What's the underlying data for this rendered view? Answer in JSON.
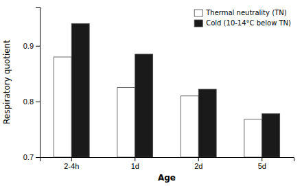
{
  "chart_data": {
    "type": "bar",
    "categories": [
      "2-4h",
      "1d",
      "2d",
      "5d"
    ],
    "series": [
      {
        "name": "Thermal neutrality (TN)",
        "color": "#ffffff",
        "values": [
          0.88,
          0.825,
          0.81,
          0.768
        ]
      },
      {
        "name": "Cold (10-14°C below TN)",
        "color": "#1a1a1a",
        "values": [
          0.94,
          0.885,
          0.822,
          0.778
        ]
      }
    ],
    "xlabel": "Age",
    "ylabel": "Respiratory quotient",
    "ylim": [
      0.7,
      0.97
    ],
    "yticks": [
      0.7,
      0.8,
      0.9
    ],
    "legend": "upper-right"
  }
}
